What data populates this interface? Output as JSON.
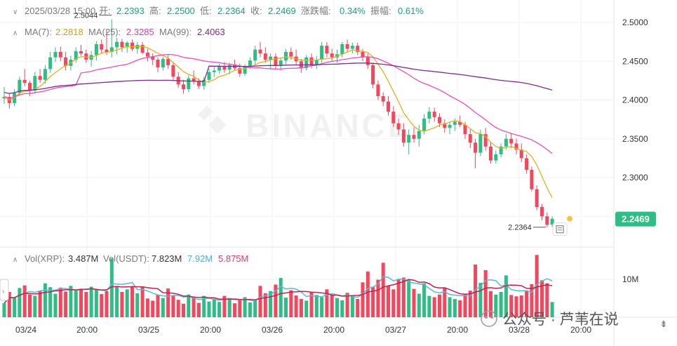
{
  "header": {
    "time": "2025/03/28 15:00",
    "open_label": "开:",
    "open": "2.2393",
    "high_label": "高:",
    "high": "2.2500",
    "low_label": "低:",
    "low": "2.2364",
    "close_label": "收:",
    "close": "2.2469",
    "change_label": "涨跌幅:",
    "change": "0.34%",
    "amp_label": "振幅:",
    "amp": "0.61%"
  },
  "ma_legend": {
    "ma7_label": "MA(7):",
    "ma7": "2.2818",
    "ma25_label": "MA(25):",
    "ma25": "2.3285",
    "ma99_label": "MA(99):",
    "ma99": "2.4063"
  },
  "vol_legend": {
    "vol_xrp_label": "Vol(XRP):",
    "vol_xrp": "3.487M",
    "vol_usdt_label": "Vol(USDT):",
    "vol_usdt": "7.823M",
    "ma_a": "7.92M",
    "ma_b": "5.875M"
  },
  "watermark": "BINANCE",
  "footer_watermark": "公众号 · 芦苇在说",
  "annotations": {
    "max": "2.5044",
    "min": "2.2364"
  },
  "current_price": "2.2469",
  "colors": {
    "up": "#2ebd85",
    "down": "#f6465d",
    "ma7": "#e0b023",
    "ma25": "#e84fbd",
    "ma99": "#7b2d8b",
    "vol_ma_a": "#5ab8d8",
    "vol_ma_b": "#c0234a",
    "price_tag": "#2ebd85"
  },
  "chart_data": {
    "type": "candlestick",
    "y_ticks": [
      "2.5000",
      "2.4500",
      "2.4000",
      "2.3500",
      "2.3000"
    ],
    "ylim": [
      2.225,
      2.52
    ],
    "x_ticks": [
      "03/24",
      "20:00",
      "03/25",
      "20:00",
      "03/26",
      "20:00",
      "03/27",
      "20:00",
      "03/28",
      "20:00"
    ],
    "vol_ticks": [
      "10M"
    ],
    "candles": [
      [
        2.402,
        2.417,
        2.395,
        2.404
      ],
      [
        2.404,
        2.409,
        2.389,
        2.396
      ],
      [
        2.396,
        2.414,
        2.392,
        2.409
      ],
      [
        2.409,
        2.43,
        2.405,
        2.426
      ],
      [
        2.426,
        2.44,
        2.418,
        2.422
      ],
      [
        2.422,
        2.425,
        2.405,
        2.412
      ],
      [
        2.412,
        2.436,
        2.408,
        2.431
      ],
      [
        2.431,
        2.44,
        2.422,
        2.426
      ],
      [
        2.426,
        2.445,
        2.421,
        2.44
      ],
      [
        2.44,
        2.462,
        2.435,
        2.455
      ],
      [
        2.455,
        2.468,
        2.449,
        2.462
      ],
      [
        2.462,
        2.469,
        2.45,
        2.455
      ],
      [
        2.455,
        2.462,
        2.438,
        2.444
      ],
      [
        2.444,
        2.457,
        2.438,
        2.452
      ],
      [
        2.452,
        2.468,
        2.448,
        2.463
      ],
      [
        2.463,
        2.471,
        2.457,
        2.46
      ],
      [
        2.46,
        2.465,
        2.448,
        2.452
      ],
      [
        2.452,
        2.463,
        2.443,
        2.458
      ],
      [
        2.458,
        2.476,
        2.451,
        2.472
      ],
      [
        2.472,
        2.478,
        2.46,
        2.465
      ],
      [
        2.465,
        2.49,
        2.458,
        2.462
      ],
      [
        2.462,
        2.504,
        2.455,
        2.468
      ],
      [
        2.468,
        2.48,
        2.459,
        2.475
      ],
      [
        2.475,
        2.479,
        2.462,
        2.468
      ],
      [
        2.468,
        2.476,
        2.461,
        2.474
      ],
      [
        2.474,
        2.478,
        2.463,
        2.466
      ],
      [
        2.466,
        2.475,
        2.46,
        2.471
      ],
      [
        2.471,
        2.475,
        2.459,
        2.461
      ],
      [
        2.461,
        2.466,
        2.45,
        2.456
      ],
      [
        2.456,
        2.46,
        2.445,
        2.452
      ],
      [
        2.452,
        2.455,
        2.436,
        2.442
      ],
      [
        2.442,
        2.456,
        2.438,
        2.453
      ],
      [
        2.453,
        2.458,
        2.44,
        2.445
      ],
      [
        2.445,
        2.449,
        2.426,
        2.43
      ],
      [
        2.43,
        2.436,
        2.416,
        2.42
      ],
      [
        2.42,
        2.426,
        2.408,
        2.414
      ],
      [
        2.414,
        2.432,
        2.41,
        2.428
      ],
      [
        2.428,
        2.438,
        2.42,
        2.424
      ],
      [
        2.424,
        2.428,
        2.414,
        2.418
      ],
      [
        2.418,
        2.43,
        2.413,
        2.426
      ],
      [
        2.426,
        2.44,
        2.422,
        2.436
      ],
      [
        2.436,
        2.444,
        2.43,
        2.438
      ],
      [
        2.438,
        2.447,
        2.434,
        2.443
      ],
      [
        2.443,
        2.449,
        2.435,
        2.439
      ],
      [
        2.439,
        2.448,
        2.433,
        2.445
      ],
      [
        2.445,
        2.452,
        2.438,
        2.441
      ],
      [
        2.441,
        2.447,
        2.43,
        2.434
      ],
      [
        2.434,
        2.446,
        2.431,
        2.443
      ],
      [
        2.443,
        2.455,
        2.44,
        2.451
      ],
      [
        2.451,
        2.47,
        2.445,
        2.465
      ],
      [
        2.465,
        2.475,
        2.455,
        2.46
      ],
      [
        2.46,
        2.468,
        2.448,
        2.452
      ],
      [
        2.452,
        2.46,
        2.44,
        2.456
      ],
      [
        2.456,
        2.46,
        2.44,
        2.444
      ],
      [
        2.444,
        2.455,
        2.438,
        2.451
      ],
      [
        2.451,
        2.466,
        2.446,
        2.462
      ],
      [
        2.462,
        2.468,
        2.452,
        2.456
      ],
      [
        2.456,
        2.465,
        2.446,
        2.45
      ],
      [
        2.45,
        2.453,
        2.435,
        2.441
      ],
      [
        2.441,
        2.458,
        2.438,
        2.455
      ],
      [
        2.455,
        2.46,
        2.441,
        2.445
      ],
      [
        2.445,
        2.457,
        2.44,
        2.452
      ],
      [
        2.452,
        2.475,
        2.448,
        2.47
      ],
      [
        2.47,
        2.475,
        2.455,
        2.46
      ],
      [
        2.46,
        2.466,
        2.45,
        2.455
      ],
      [
        2.455,
        2.465,
        2.448,
        2.459
      ],
      [
        2.459,
        2.475,
        2.455,
        2.472
      ],
      [
        2.472,
        2.478,
        2.462,
        2.466
      ],
      [
        2.466,
        2.474,
        2.46,
        2.47
      ],
      [
        2.47,
        2.474,
        2.458,
        2.462
      ],
      [
        2.462,
        2.466,
        2.45,
        2.455
      ],
      [
        2.455,
        2.46,
        2.44,
        2.445
      ],
      [
        2.445,
        2.448,
        2.415,
        2.42
      ],
      [
        2.42,
        2.425,
        2.4,
        2.405
      ],
      [
        2.405,
        2.41,
        2.392,
        2.398
      ],
      [
        2.398,
        2.405,
        2.38,
        2.385
      ],
      [
        2.385,
        2.392,
        2.365,
        2.37
      ],
      [
        2.37,
        2.376,
        2.355,
        2.362
      ],
      [
        2.362,
        2.37,
        2.34,
        2.345
      ],
      [
        2.345,
        2.362,
        2.33,
        2.355
      ],
      [
        2.355,
        2.365,
        2.345,
        2.35
      ],
      [
        2.35,
        2.368,
        2.34,
        2.36
      ],
      [
        2.36,
        2.382,
        2.356,
        2.376
      ],
      [
        2.376,
        2.391,
        2.37,
        2.385
      ],
      [
        2.385,
        2.39,
        2.372,
        2.378
      ],
      [
        2.378,
        2.383,
        2.365,
        2.37
      ],
      [
        2.37,
        2.375,
        2.358,
        2.364
      ],
      [
        2.364,
        2.372,
        2.356,
        2.368
      ],
      [
        2.368,
        2.376,
        2.36,
        2.372
      ],
      [
        2.372,
        2.38,
        2.365,
        2.368
      ],
      [
        2.368,
        2.372,
        2.35,
        2.356
      ],
      [
        2.356,
        2.362,
        2.338,
        2.345
      ],
      [
        2.345,
        2.35,
        2.312,
        2.332
      ],
      [
        2.332,
        2.362,
        2.328,
        2.356
      ],
      [
        2.356,
        2.364,
        2.335,
        2.34
      ],
      [
        2.34,
        2.345,
        2.318,
        2.322
      ],
      [
        2.322,
        2.335,
        2.318,
        2.33
      ],
      [
        2.33,
        2.344,
        2.326,
        2.34
      ],
      [
        2.34,
        2.356,
        2.336,
        2.35
      ],
      [
        2.35,
        2.357,
        2.338,
        2.344
      ],
      [
        2.344,
        2.35,
        2.33,
        2.336
      ],
      [
        2.336,
        2.344,
        2.32,
        2.325
      ],
      [
        2.325,
        2.33,
        2.305,
        2.31
      ],
      [
        2.31,
        2.314,
        2.282,
        2.285
      ],
      [
        2.285,
        2.29,
        2.258,
        2.262
      ],
      [
        2.262,
        2.266,
        2.245,
        2.25
      ],
      [
        2.25,
        2.255,
        2.236,
        2.239
      ],
      [
        2.2393,
        2.25,
        2.2364,
        2.2469
      ]
    ],
    "volumes": [
      3.2,
      5.8,
      4.5,
      6.7,
      7.3,
      5.2,
      4.9,
      6.1,
      7.8,
      6.9,
      5.4,
      6.8,
      5.9,
      7.2,
      6.1,
      6.5,
      5.8,
      7.0,
      6.4,
      5.3,
      6.0,
      13.5,
      7.0,
      5.8,
      6.4,
      7.1,
      5.5,
      6.9,
      4.3,
      3.8,
      5.1,
      4.4,
      6.6,
      5.0,
      4.0,
      3.1,
      5.2,
      4.7,
      3.3,
      4.9,
      3.6,
      4.2,
      3.5,
      4.9,
      4.4,
      3.2,
      3.9,
      4.6,
      3.4,
      4.1,
      7.2,
      5.5,
      6.0,
      7.5,
      9.0,
      4.5,
      6.2,
      5.0,
      4.2,
      3.8,
      5.8,
      5.1,
      4.6,
      6.4,
      5.2,
      4.4,
      3.9,
      5.6,
      4.7,
      4.2,
      8.0,
      10.5,
      7.0,
      8.6,
      12.5,
      7.2,
      6.4,
      8.8,
      9.1,
      8.5,
      6.5,
      5.4,
      7.8,
      4.9,
      4.6,
      5.2,
      6.8,
      4.6,
      4.2,
      3.9,
      5.4,
      6.1,
      12.1,
      7.9,
      10.8,
      6.0,
      5.2,
      5.8,
      9.6,
      5.1,
      4.8,
      5.0,
      6.0,
      7.6,
      14.3,
      8.5,
      7.8,
      3.5
    ]
  }
}
